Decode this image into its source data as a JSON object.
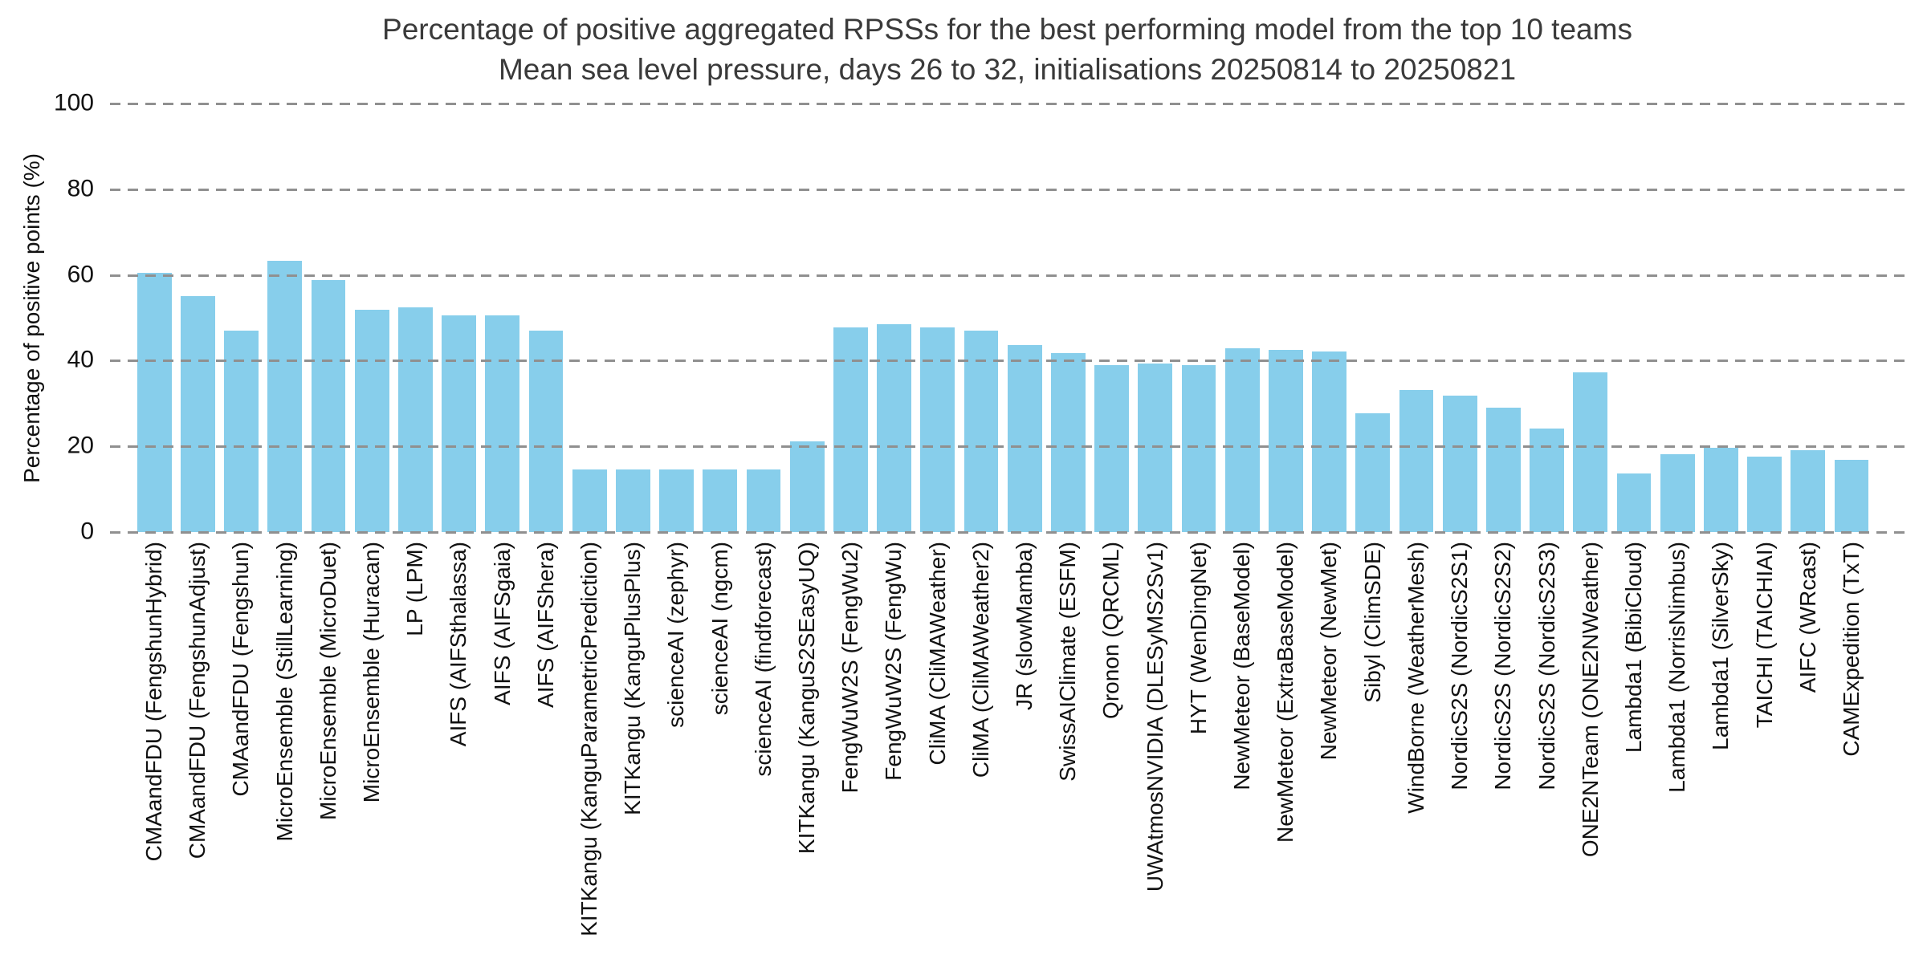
{
  "chart_data": {
    "type": "bar",
    "title": "Percentage of positive aggregated RPSSs for the best performing model from the top 10 teams",
    "subtitle": "Mean sea level pressure, days 26 to 32, initialisations 20250814 to 20250821",
    "xlabel": "",
    "ylabel": "Percentage of positive points (%)",
    "ylim": [
      0,
      100
    ],
    "yticks": [
      0,
      20,
      40,
      60,
      80,
      100
    ],
    "grid": "horizontal-dashed",
    "legend_position": "none",
    "bar_color": "#87CEEB",
    "gridline_color": "#909090",
    "title_color": "#3a3a3a",
    "tick_label_color": "#111111",
    "categories": [
      "CMAandFDU (FengshunHybrid)",
      "CMAandFDU (FengshunAdjust)",
      "CMAandFDU (Fengshun)",
      "MicroEnsemble (StillLearning)",
      "MicroEnsemble (MicroDuet)",
      "MicroEnsemble (Huracan)",
      "LP (LPM)",
      "AIFS (AIFSthalassa)",
      "AIFS (AIFSgaia)",
      "AIFS (AIFShera)",
      "KITKangu (KanguParametricPrediction)",
      "KITKangu (KanguPlusPlus)",
      "scienceAI (zephyr)",
      "scienceAI (ngcm)",
      "scienceAI (findforecast)",
      "KITKangu (KanguS2SEasyUQ)",
      "FengWuW2S (FengWu2)",
      "FengWuW2S (FengWu)",
      "CliMA (CliMAWeather)",
      "CliMA (CliMAWeather2)",
      "JR (slowMamba)",
      "SwissAIClimate (ESFM)",
      "Qronon (QRCML)",
      "UWAtmosNVIDIA (DLESyMS2Sv1)",
      "HYT (WenDingNet)",
      "NewMeteor (BaseModel)",
      "NewMeteor (ExtraBaseModel)",
      "NewMeteor (NewMet)",
      "Sibyl (ClimSDE)",
      "WindBorne (WeatherMesh)",
      "NordicS2S (NordicS2S1)",
      "NordicS2S (NordicS2S2)",
      "NordicS2S (NordicS2S3)",
      "ONE2NTeam (ONE2NWeather)",
      "Lambda1 (BibiCloud)",
      "Lambda1 (NorrisNimbus)",
      "Lambda1 (SilverSky)",
      "TAICHI (TAICHIAI)",
      "AIFC (WRcast)",
      "CAMExpedition (TxT)"
    ],
    "values": [
      60.5,
      55.0,
      47.0,
      63.3,
      58.8,
      51.8,
      52.5,
      50.5,
      50.6,
      47.0,
      14.7,
      14.7,
      14.7,
      14.7,
      14.7,
      21.1,
      47.7,
      48.5,
      47.7,
      47.0,
      43.6,
      41.8,
      39.0,
      39.3,
      39.0,
      42.8,
      42.6,
      42.2,
      27.8,
      33.2,
      31.9,
      29.1,
      24.2,
      37.3,
      13.6,
      18.1,
      19.6,
      17.6,
      19.1,
      16.8
    ]
  }
}
